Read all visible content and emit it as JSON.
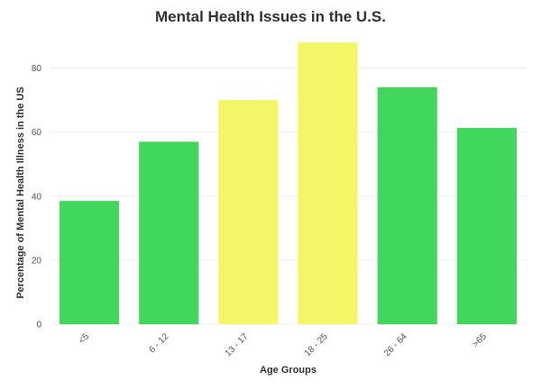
{
  "chart_data": {
    "type": "bar",
    "title": "Mental Health Issues in the U.S.",
    "xlabel": "Age Groups",
    "ylabel": "Percentage of Mental Health Illness in the US",
    "categories": [
      "<5",
      "6 - 12",
      "13 - 17",
      "18 - 25",
      "26 - 64",
      ">65"
    ],
    "values": [
      38.5,
      57,
      70,
      88,
      74,
      61.3
    ],
    "bar_colors": [
      "#43d65d",
      "#43d65d",
      "#f3f765",
      "#f3f765",
      "#43d65d",
      "#43d65d"
    ],
    "ylim": [
      0,
      90
    ],
    "yticks": [
      0,
      20,
      40,
      60,
      80
    ],
    "grid": true,
    "legend": "none"
  }
}
